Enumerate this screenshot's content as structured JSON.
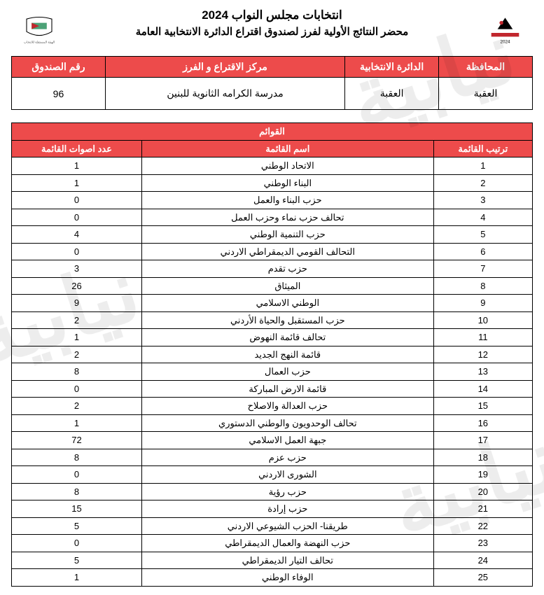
{
  "header": {
    "title1": "انتخابات مجلس النواب 2024",
    "title2": "محضر النتائج الأولية لفرز لصندوق اقتراع الدائرة الانتخابية العامة"
  },
  "info": {
    "headers": {
      "governorate": "المحافظة",
      "district": "الدائرة الانتخابية",
      "center": "مركز الاقتراع و الفرز",
      "box": "رقم الصندوق"
    },
    "values": {
      "governorate": "العقبة",
      "district": "العقبة",
      "center": "مدرسة الكرامه الثانوية للبنين",
      "box": "96"
    }
  },
  "lists": {
    "section_title": "القوائم",
    "headers": {
      "rank": "ترتيب القائمة",
      "name": "اسم القائمة",
      "votes": "عدد اصوات القائمة"
    },
    "rows": [
      {
        "rank": "1",
        "name": "الاتحاد الوطني",
        "votes": "1"
      },
      {
        "rank": "2",
        "name": "البناء الوطني",
        "votes": "1"
      },
      {
        "rank": "3",
        "name": "حزب البناء والعمل",
        "votes": "0"
      },
      {
        "rank": "4",
        "name": "تحالف حزب نماء وحزب العمل",
        "votes": "0"
      },
      {
        "rank": "5",
        "name": "حزب التنمية الوطني",
        "votes": "4"
      },
      {
        "rank": "6",
        "name": "التحالف القومي الديمقراطي الاردني",
        "votes": "0"
      },
      {
        "rank": "7",
        "name": "حزب تقدم",
        "votes": "3"
      },
      {
        "rank": "8",
        "name": "الميثاق",
        "votes": "26"
      },
      {
        "rank": "9",
        "name": "الوطني الاسلامي",
        "votes": "9"
      },
      {
        "rank": "10",
        "name": "حزب المستقبل والحياة الأردني",
        "votes": "2"
      },
      {
        "rank": "11",
        "name": "تحالف قائمة النهوض",
        "votes": "1"
      },
      {
        "rank": "12",
        "name": "قائمة النهج الجديد",
        "votes": "2"
      },
      {
        "rank": "13",
        "name": "حزب العمال",
        "votes": "8"
      },
      {
        "rank": "14",
        "name": "قائمة الارض المباركة",
        "votes": "0"
      },
      {
        "rank": "15",
        "name": "حزب العدالة والاصلاح",
        "votes": "2"
      },
      {
        "rank": "16",
        "name": "تحالف الوحدويون والوطني الدستوري",
        "votes": "1"
      },
      {
        "rank": "17",
        "name": "جبهة العمل الاسلامي",
        "votes": "72"
      },
      {
        "rank": "18",
        "name": "حزب عزم",
        "votes": "8"
      },
      {
        "rank": "19",
        "name": "الشورى الاردني",
        "votes": "0"
      },
      {
        "rank": "20",
        "name": "حزب رؤية",
        "votes": "8"
      },
      {
        "rank": "21",
        "name": "حزب إرادة",
        "votes": "15"
      },
      {
        "rank": "22",
        "name": "طريقنا- الحزب الشيوعي الاردني",
        "votes": "5"
      },
      {
        "rank": "23",
        "name": "حزب النهضة والعمال الديمقراطي",
        "votes": "0"
      },
      {
        "rank": "24",
        "name": "تحالف التيار الديمقراطي",
        "votes": "5"
      },
      {
        "rank": "25",
        "name": "الوفاء الوطني",
        "votes": "1"
      }
    ]
  }
}
